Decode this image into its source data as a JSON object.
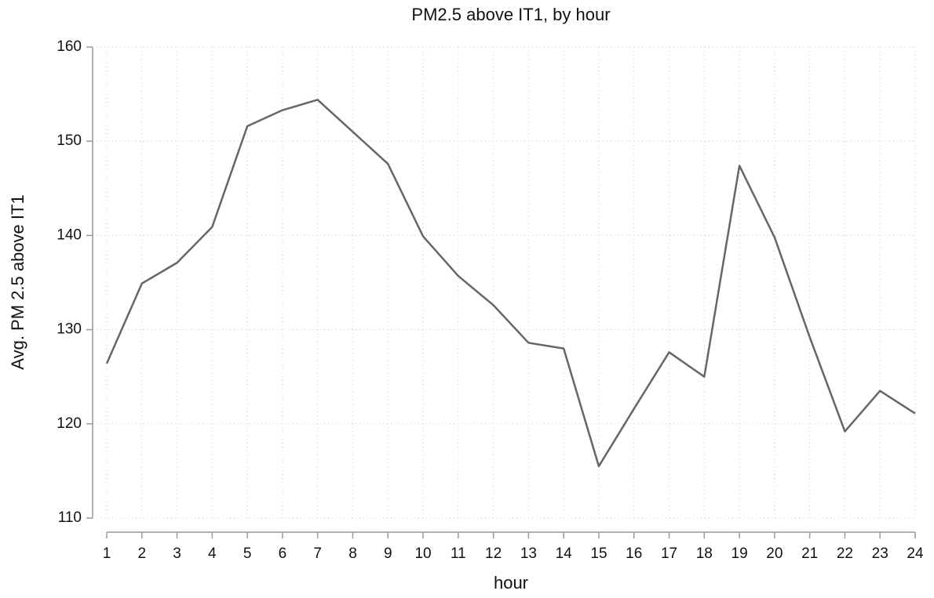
{
  "chart_data": {
    "type": "line",
    "title": "PM2.5 above IT1, by hour",
    "x_label": "hour",
    "y_label": "Avg. PM 2.5 above IT1",
    "x": [
      1,
      2,
      3,
      4,
      5,
      6,
      7,
      8,
      9,
      10,
      11,
      12,
      13,
      14,
      15,
      16,
      17,
      18,
      19,
      20,
      21,
      22,
      23,
      24
    ],
    "series": [
      {
        "color": "#666666",
        "values": [
          126.4,
          134.9,
          137.1,
          140.9,
          151.6,
          153.3,
          154.4,
          151.0,
          147.6,
          139.9,
          135.7,
          132.6,
          128.6,
          128.0,
          115.5,
          121.6,
          127.6,
          125.0,
          147.4,
          139.8,
          129.2,
          119.2,
          123.5,
          121.1
        ]
      }
    ],
    "xlim": [
      1,
      24
    ],
    "xticks": [
      1,
      2,
      3,
      4,
      5,
      6,
      7,
      8,
      9,
      10,
      11,
      12,
      13,
      14,
      15,
      16,
      17,
      18,
      19,
      20,
      21,
      22,
      23,
      24
    ],
    "ylim": [
      110,
      160
    ],
    "yticks": [
      110,
      120,
      130,
      140,
      150,
      160
    ],
    "grid": true
  }
}
